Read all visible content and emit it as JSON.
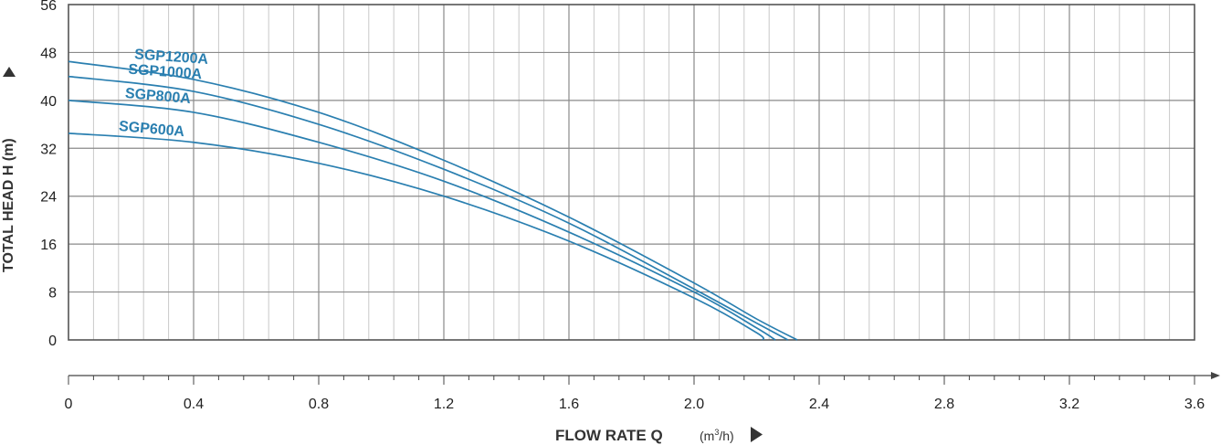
{
  "chart_data": {
    "type": "line",
    "title": "",
    "xlabel": "FLOW RATE Q",
    "xunit_pre": "(m",
    "xunit_sup": "3",
    "xunit_post": "/h)",
    "ylabel": "TOTAL HEAD H (m)",
    "xlim": [
      0,
      3.6
    ],
    "ylim": [
      0,
      56
    ],
    "x_ticks": [
      "0",
      "0.4",
      "0.8",
      "1.2",
      "1.6",
      "2.0",
      "2.4",
      "2.8",
      "3.2",
      "3.6"
    ],
    "y_ticks": [
      "0",
      "8",
      "16",
      "24",
      "32",
      "40",
      "48",
      "56"
    ],
    "grid": true,
    "line_color": "#2a7fb0",
    "series": [
      {
        "name": "SGP1200A",
        "x": [
          0,
          0.4,
          0.8,
          1.2,
          1.6,
          2.0,
          2.2,
          2.33
        ],
        "y": [
          46.5,
          43.5,
          38,
          30,
          20.5,
          9.5,
          3.5,
          0
        ]
      },
      {
        "name": "SGP1000A",
        "x": [
          0,
          0.4,
          0.8,
          1.2,
          1.6,
          2.0,
          2.2,
          2.3
        ],
        "y": [
          44,
          41.5,
          36,
          28.5,
          19.5,
          8.5,
          2.8,
          0
        ]
      },
      {
        "name": "SGP800A",
        "x": [
          0,
          0.4,
          0.8,
          1.2,
          1.6,
          2.0,
          2.2,
          2.26
        ],
        "y": [
          40,
          38,
          33,
          26.5,
          18,
          8,
          2,
          0
        ]
      },
      {
        "name": "SGP600A",
        "x": [
          0,
          0.4,
          0.8,
          1.2,
          1.6,
          2.0,
          2.2,
          2.22
        ],
        "y": [
          34.5,
          33,
          29.5,
          24,
          16.5,
          7,
          1.2,
          0
        ]
      }
    ]
  }
}
